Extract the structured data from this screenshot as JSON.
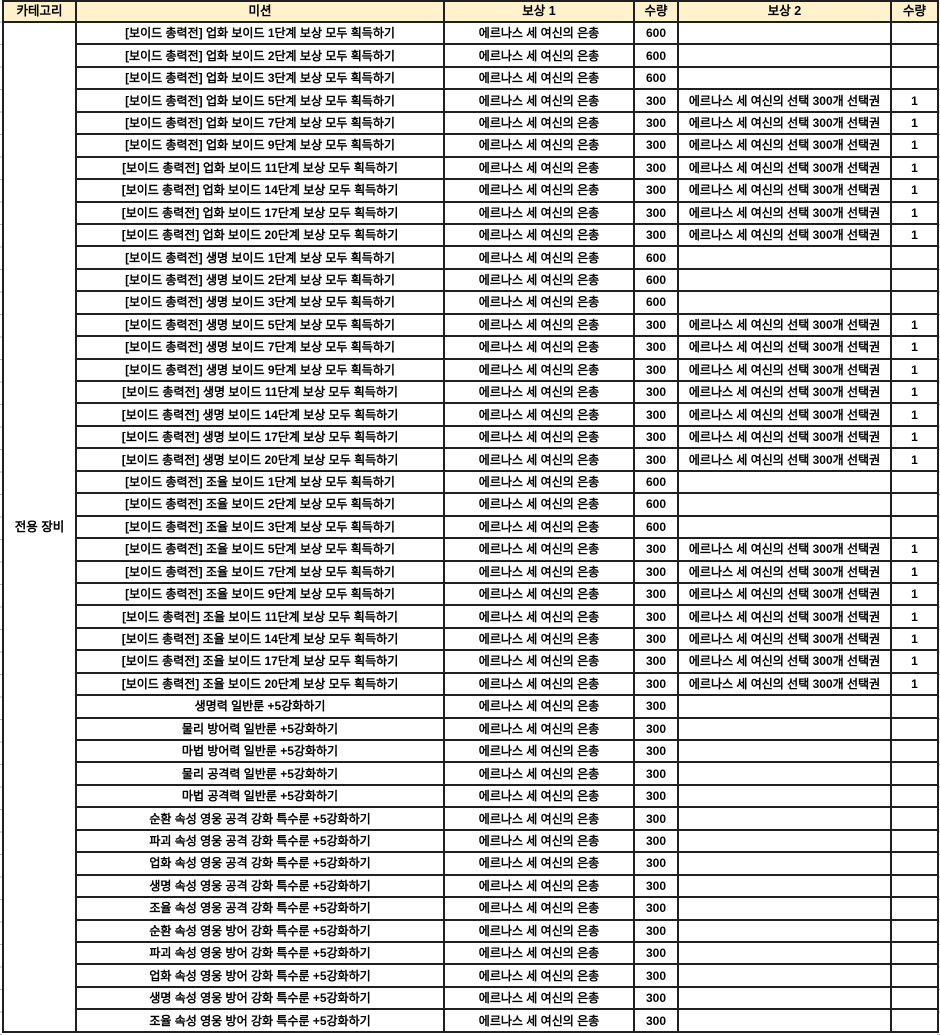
{
  "colors": {
    "header_bg": "#FFF2CC",
    "border": "#202020",
    "grid_stub": "#B4B4B4",
    "text": "#000000"
  },
  "table": {
    "headers": [
      "카테고리",
      "미션",
      "보상 1",
      "수량",
      "보상 2",
      "수량"
    ],
    "category": "전용 장비",
    "rows": [
      [
        "[보이드 총력전] 업화 보이드 1단계 보상 모두 획득하기",
        "에르나스 세 여신의 은총",
        "600",
        "",
        ""
      ],
      [
        "[보이드 총력전] 업화 보이드 2단계 보상 모두 획득하기",
        "에르나스 세 여신의 은총",
        "600",
        "",
        ""
      ],
      [
        "[보이드 총력전] 업화 보이드 3단계 보상 모두 획득하기",
        "에르나스 세 여신의 은총",
        "600",
        "",
        ""
      ],
      [
        "[보이드 총력전] 업화 보이드 5단계 보상 모두 획득하기",
        "에르나스 세 여신의 은총",
        "300",
        "에르나스 세 여신의 선택 300개 선택권",
        "1"
      ],
      [
        "[보이드 총력전] 업화 보이드 7단계 보상 모두 획득하기",
        "에르나스 세 여신의 은총",
        "300",
        "에르나스 세 여신의 선택 300개 선택권",
        "1"
      ],
      [
        "[보이드 총력전] 업화 보이드 9단계 보상 모두 획득하기",
        "에르나스 세 여신의 은총",
        "300",
        "에르나스 세 여신의 선택 300개 선택권",
        "1"
      ],
      [
        "[보이드 총력전] 업화 보이드 11단계 보상 모두 획득하기",
        "에르나스 세 여신의 은총",
        "300",
        "에르나스 세 여신의 선택 300개 선택권",
        "1"
      ],
      [
        "[보이드 총력전] 업화 보이드 14단계 보상 모두 획득하기",
        "에르나스 세 여신의 은총",
        "300",
        "에르나스 세 여신의 선택 300개 선택권",
        "1"
      ],
      [
        "[보이드 총력전] 업화 보이드 17단계 보상 모두 획득하기",
        "에르나스 세 여신의 은총",
        "300",
        "에르나스 세 여신의 선택 300개 선택권",
        "1"
      ],
      [
        "[보이드 총력전] 업화 보이드 20단계 보상 모두 획득하기",
        "에르나스 세 여신의 은총",
        "300",
        "에르나스 세 여신의 선택 300개 선택권",
        "1"
      ],
      [
        "[보이드 총력전] 생명 보이드 1단계 보상 모두 획득하기",
        "에르나스 세 여신의 은총",
        "600",
        "",
        ""
      ],
      [
        "[보이드 총력전] 생명 보이드 2단계 보상 모두 획득하기",
        "에르나스 세 여신의 은총",
        "600",
        "",
        ""
      ],
      [
        "[보이드 총력전] 생명 보이드 3단계 보상 모두 획득하기",
        "에르나스 세 여신의 은총",
        "600",
        "",
        ""
      ],
      [
        "[보이드 총력전] 생명 보이드 5단계 보상 모두 획득하기",
        "에르나스 세 여신의 은총",
        "300",
        "에르나스 세 여신의 선택 300개 선택권",
        "1"
      ],
      [
        "[보이드 총력전] 생명 보이드 7단계 보상 모두 획득하기",
        "에르나스 세 여신의 은총",
        "300",
        "에르나스 세 여신의 선택 300개 선택권",
        "1"
      ],
      [
        "[보이드 총력전] 생명 보이드 9단계 보상 모두 획득하기",
        "에르나스 세 여신의 은총",
        "300",
        "에르나스 세 여신의 선택 300개 선택권",
        "1"
      ],
      [
        "[보이드 총력전] 생명 보이드 11단계 보상 모두 획득하기",
        "에르나스 세 여신의 은총",
        "300",
        "에르나스 세 여신의 선택 300개 선택권",
        "1"
      ],
      [
        "[보이드 총력전] 생명 보이드 14단계 보상 모두 획득하기",
        "에르나스 세 여신의 은총",
        "300",
        "에르나스 세 여신의 선택 300개 선택권",
        "1"
      ],
      [
        "[보이드 총력전] 생명 보이드 17단계 보상 모두 획득하기",
        "에르나스 세 여신의 은총",
        "300",
        "에르나스 세 여신의 선택 300개 선택권",
        "1"
      ],
      [
        "[보이드 총력전] 생명 보이드 20단계 보상 모두 획득하기",
        "에르나스 세 여신의 은총",
        "300",
        "에르나스 세 여신의 선택 300개 선택권",
        "1"
      ],
      [
        "[보이드 총력전] 조율 보이드 1단계 보상 모두 획득하기",
        "에르나스 세 여신의 은총",
        "600",
        "",
        ""
      ],
      [
        "[보이드 총력전] 조율 보이드 2단계 보상 모두 획득하기",
        "에르나스 세 여신의 은총",
        "600",
        "",
        ""
      ],
      [
        "[보이드 총력전] 조율 보이드 3단계 보상 모두 획득하기",
        "에르나스 세 여신의 은총",
        "600",
        "",
        ""
      ],
      [
        "[보이드 총력전] 조율 보이드 5단계 보상 모두 획득하기",
        "에르나스 세 여신의 은총",
        "300",
        "에르나스 세 여신의 선택 300개 선택권",
        "1"
      ],
      [
        "[보이드 총력전] 조율 보이드 7단계 보상 모두 획득하기",
        "에르나스 세 여신의 은총",
        "300",
        "에르나스 세 여신의 선택 300개 선택권",
        "1"
      ],
      [
        "[보이드 총력전] 조율 보이드 9단계 보상 모두 획득하기",
        "에르나스 세 여신의 은총",
        "300",
        "에르나스 세 여신의 선택 300개 선택권",
        "1"
      ],
      [
        "[보이드 총력전] 조율 보이드 11단계 보상 모두 획득하기",
        "에르나스 세 여신의 은총",
        "300",
        "에르나스 세 여신의 선택 300개 선택권",
        "1"
      ],
      [
        "[보이드 총력전] 조율 보이드 14단계 보상 모두 획득하기",
        "에르나스 세 여신의 은총",
        "300",
        "에르나스 세 여신의 선택 300개 선택권",
        "1"
      ],
      [
        "[보이드 총력전] 조율 보이드 17단계 보상 모두 획득하기",
        "에르나스 세 여신의 은총",
        "300",
        "에르나스 세 여신의 선택 300개 선택권",
        "1"
      ],
      [
        "[보이드 총력전] 조율 보이드 20단계 보상 모두 획득하기",
        "에르나스 세 여신의 은총",
        "300",
        "에르나스 세 여신의 선택 300개 선택권",
        "1"
      ],
      [
        "생명력 일반룬 +5강화하기",
        "에르나스 세 여신의 은총",
        "300",
        "",
        ""
      ],
      [
        "물리 방어력 일반룬 +5강화하기",
        "에르나스 세 여신의 은총",
        "300",
        "",
        ""
      ],
      [
        "마법 방어력 일반룬 +5강화하기",
        "에르나스 세 여신의 은총",
        "300",
        "",
        ""
      ],
      [
        "물리 공격력 일반룬 +5강화하기",
        "에르나스 세 여신의 은총",
        "300",
        "",
        ""
      ],
      [
        "마법 공격력 일반룬 +5강화하기",
        "에르나스 세 여신의 은총",
        "300",
        "",
        ""
      ],
      [
        "순환 속성 영웅 공격 강화 특수룬 +5강화하기",
        "에르나스 세 여신의 은총",
        "300",
        "",
        ""
      ],
      [
        "파괴 속성 영웅 공격 강화 특수룬 +5강화하기",
        "에르나스 세 여신의 은총",
        "300",
        "",
        ""
      ],
      [
        "업화 속성 영웅 공격 강화 특수룬 +5강화하기",
        "에르나스 세 여신의 은총",
        "300",
        "",
        ""
      ],
      [
        "생명 속성 영웅 공격 강화 특수룬 +5강화하기",
        "에르나스 세 여신의 은총",
        "300",
        "",
        ""
      ],
      [
        "조율 속성 영웅 공격 강화 특수룬 +5강화하기",
        "에르나스 세 여신의 은총",
        "300",
        "",
        ""
      ],
      [
        "순환 속성 영웅 방어 강화 특수룬 +5강화하기",
        "에르나스 세 여신의 은총",
        "300",
        "",
        ""
      ],
      [
        "파괴 속성 영웅 방어 강화 특수룬 +5강화하기",
        "에르나스 세 여신의 은총",
        "300",
        "",
        ""
      ],
      [
        "업화 속성 영웅 방어 강화 특수룬 +5강화하기",
        "에르나스 세 여신의 은총",
        "300",
        "",
        ""
      ],
      [
        "생명 속성 영웅 방어 강화 특수룬 +5강화하기",
        "에르나스 세 여신의 은총",
        "300",
        "",
        ""
      ],
      [
        "조율 속성 영웅 방어 강화 특수룬 +5강화하기",
        "에르나스 세 여신의 은총",
        "300",
        "",
        ""
      ]
    ]
  }
}
